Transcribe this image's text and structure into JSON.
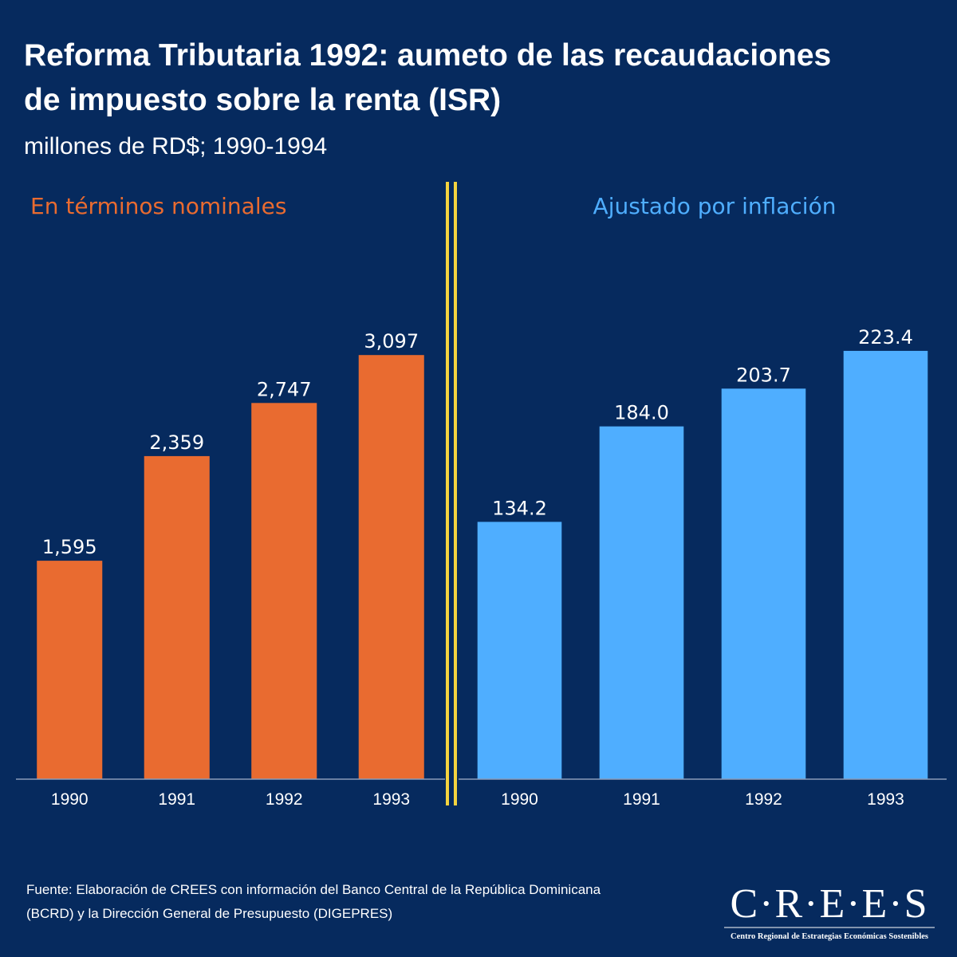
{
  "title": "Reforma Tributaria 1992: aumeto de las recaudaciones de impuesto sobre la renta (ISR)",
  "title_lines": [
    "Reforma Tributaria 1992: aumeto de las recaudaciones",
    "de impuesto sobre la renta (ISR)"
  ],
  "subtitle": "millones de RD$; 1990-1994",
  "source_lines": [
    "Fuente: Elaboración de CREES con información del Banco Central de la República Dominicana",
    "(BCRD) y la Dirección General de Presupuesto (DIGEPRES)"
  ],
  "logo": {
    "name": "C·R·E·E·S",
    "tagline": "Centro Regional de Estrategias Económicas Sostenibles"
  },
  "chart_data": [
    {
      "type": "bar",
      "title": "En términos nominales",
      "categories": [
        "1990",
        "1991",
        "1992",
        "1993"
      ],
      "values": [
        1595,
        2359,
        2747,
        3097
      ],
      "value_labels": [
        "1,595",
        "2,359",
        "2,747",
        "3,097"
      ],
      "color": "#e96b30",
      "ylim": [
        0,
        3500
      ]
    },
    {
      "type": "bar",
      "title": "Ajustado por inflación",
      "categories": [
        "1990",
        "1991",
        "1992",
        "1993"
      ],
      "values": [
        134.2,
        184,
        203.7,
        223.4
      ],
      "value_labels": [
        "134.2",
        "184.0",
        "203.7",
        "223.4"
      ],
      "color": "#4faeff",
      "ylim": [
        0,
        250
      ]
    }
  ]
}
